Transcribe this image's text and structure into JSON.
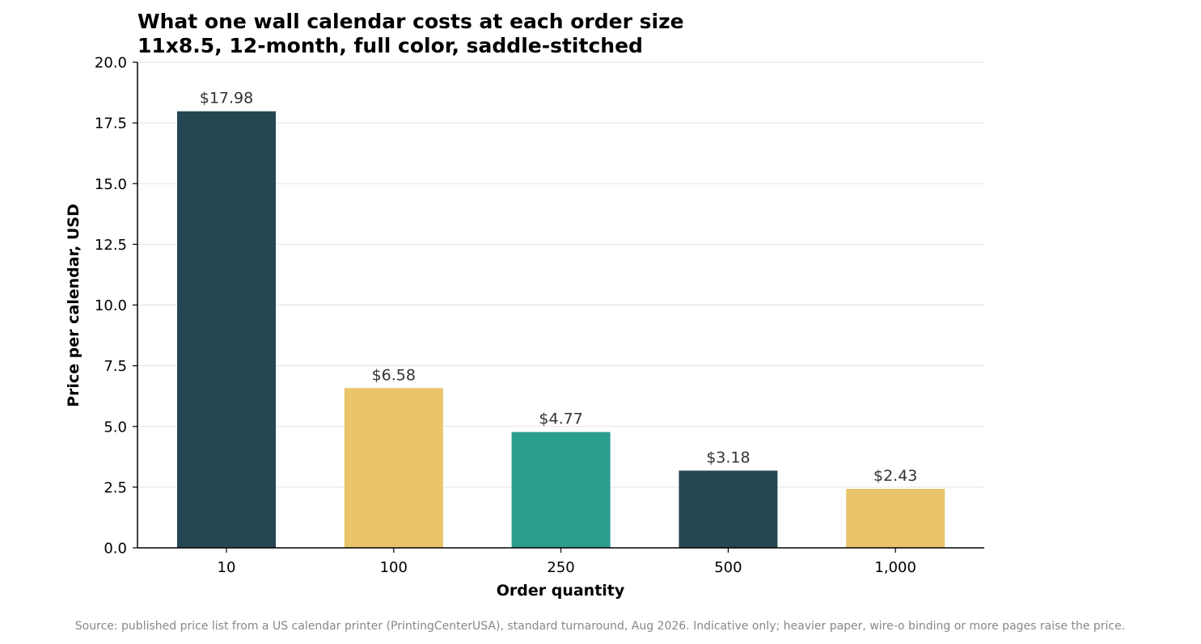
{
  "chart_data": {
    "type": "bar",
    "title": "What one wall calendar costs at each order size",
    "subtitle": "11x8.5, 12-month, full color, saddle-stitched",
    "xlabel": "Order quantity",
    "ylabel": "Price per calendar, USD",
    "categories": [
      "10",
      "100",
      "250",
      "500",
      "1,000"
    ],
    "values": [
      17.98,
      6.58,
      4.77,
      3.18,
      2.43
    ],
    "value_labels": [
      "$17.98",
      "$6.58",
      "$4.77",
      "$3.18",
      "$2.43"
    ],
    "bar_colors": [
      "#264653",
      "#E9C46A",
      "#2A9D8F",
      "#264653",
      "#E9C46A"
    ],
    "ylim": [
      0,
      20
    ],
    "yticks": [
      "0.0",
      "2.5",
      "5.0",
      "7.5",
      "10.0",
      "12.5",
      "15.0",
      "17.5",
      "20.0"
    ],
    "grid": "horizontal",
    "legend": "none",
    "source": "Source: published price list from a US calendar printer (PrintingCenterUSA), standard turnaround, Aug 2026. Indicative only; heavier paper, wire-o binding or more pages raise the price."
  }
}
